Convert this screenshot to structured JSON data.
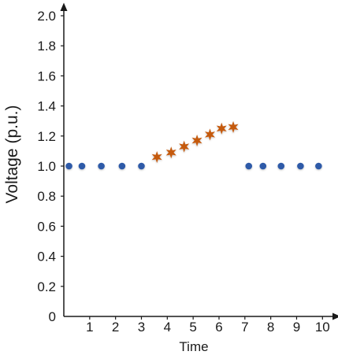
{
  "chart_data": {
    "type": "scatter",
    "title": "",
    "xlabel": "Time",
    "ylabel": "Voltage (p.u.)",
    "xlim": [
      0,
      10.6
    ],
    "ylim": [
      0,
      2.1
    ],
    "x_ticks": [
      1,
      2,
      3,
      4,
      5,
      6,
      7,
      8,
      9,
      10
    ],
    "y_ticks": [
      0,
      0.2,
      0.4,
      0.6,
      0.8,
      1.0,
      1.2,
      1.4,
      1.6,
      1.8,
      2.0
    ],
    "y_tick_labels": [
      "0",
      "0.2",
      "0.4",
      "0.6",
      "0.8",
      "1.0",
      "1.2",
      "1.4",
      "1.6",
      "1.8",
      "2.0"
    ],
    "grid": false,
    "series": [
      {
        "marker": "circle",
        "color": "#2e5aa8",
        "points": [
          {
            "x": 0.2,
            "y": 1.0
          },
          {
            "x": 0.7,
            "y": 1.0
          },
          {
            "x": 1.45,
            "y": 1.0
          },
          {
            "x": 2.25,
            "y": 1.0
          },
          {
            "x": 3.0,
            "y": 1.0
          }
        ]
      },
      {
        "marker": "star",
        "color": "#c55a11",
        "points": [
          {
            "x": 3.6,
            "y": 1.06
          },
          {
            "x": 4.15,
            "y": 1.09
          },
          {
            "x": 4.65,
            "y": 1.13
          },
          {
            "x": 5.15,
            "y": 1.17
          },
          {
            "x": 5.65,
            "y": 1.21
          },
          {
            "x": 6.1,
            "y": 1.25
          },
          {
            "x": 6.55,
            "y": 1.26
          }
        ]
      },
      {
        "marker": "circle",
        "color": "#2e5aa8",
        "points": [
          {
            "x": 7.15,
            "y": 1.0
          },
          {
            "x": 7.7,
            "y": 1.0
          },
          {
            "x": 8.4,
            "y": 1.0
          },
          {
            "x": 9.15,
            "y": 1.0
          },
          {
            "x": 9.85,
            "y": 1.0
          }
        ]
      }
    ]
  }
}
